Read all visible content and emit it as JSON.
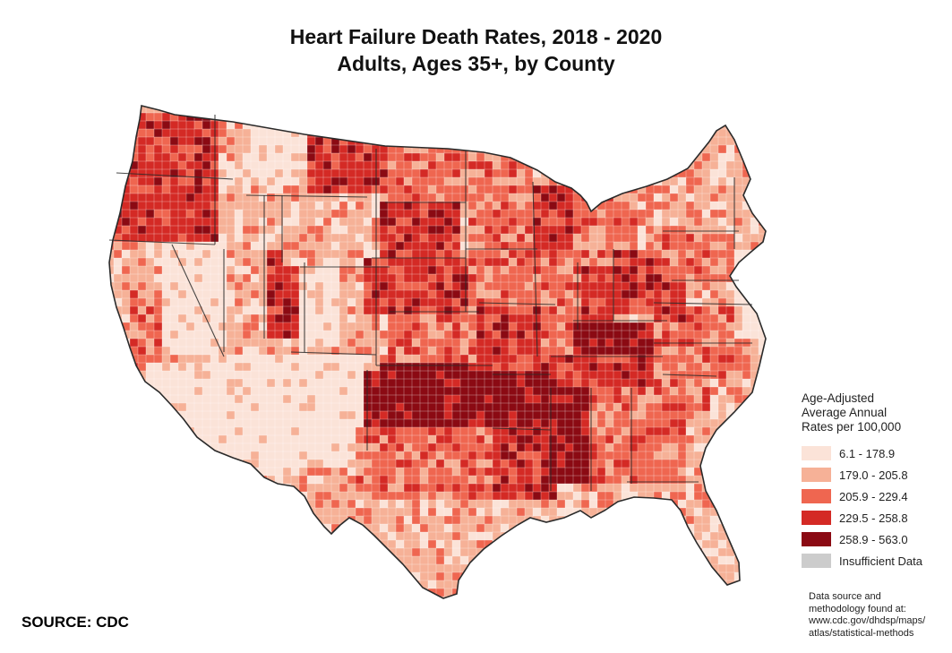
{
  "title": {
    "line1": "Heart Failure Death Rates, 2018 - 2020",
    "line2": "Adults, Ages 35+, by County"
  },
  "legend": {
    "heading": [
      "Age-Adjusted",
      "Average Annual",
      "Rates per 100,000"
    ],
    "items": [
      {
        "label": "6.1 - 178.9",
        "color": "#fbe3d8"
      },
      {
        "label": "179.0 - 205.8",
        "color": "#f6b197"
      },
      {
        "label": "205.9 - 229.4",
        "color": "#ef6650"
      },
      {
        "label": "229.5 - 258.8",
        "color": "#d42a25"
      },
      {
        "label": "258.9 - 563.0",
        "color": "#8b0a13"
      },
      {
        "label": "Insufficient Data",
        "color": "#cccccc"
      }
    ]
  },
  "source": "SOURCE: CDC",
  "methodology": [
    "Data source and",
    "methodology found at:",
    "www.cdc.gov/dhdsp/maps/",
    "atlas/statistical-methods"
  ],
  "map": {
    "style": {
      "border_color": "#2a2a2a",
      "county_line_color": "#ffffff"
    },
    "regions": [
      {
        "name": "washington",
        "cls": 3
      },
      {
        "name": "oregon",
        "cls": 3
      },
      {
        "name": "california-north",
        "cls": 1
      },
      {
        "name": "california-central-valley",
        "cls": 2
      },
      {
        "name": "california-south",
        "cls": 0
      },
      {
        "name": "nevada",
        "cls": 0
      },
      {
        "name": "idaho",
        "cls": 1
      },
      {
        "name": "utah-east",
        "cls": 3
      },
      {
        "name": "utah-west",
        "cls": 1
      },
      {
        "name": "arizona",
        "cls": 0
      },
      {
        "name": "montana-west",
        "cls": 0
      },
      {
        "name": "montana-east",
        "cls": 3
      },
      {
        "name": "wyoming",
        "cls": 1
      },
      {
        "name": "colorado-east",
        "cls": 1
      },
      {
        "name": "colorado-west",
        "cls": 0
      },
      {
        "name": "new-mexico",
        "cls": 0
      },
      {
        "name": "north-dakota",
        "cls": 2
      },
      {
        "name": "south-dakota",
        "cls": 3
      },
      {
        "name": "nebraska",
        "cls": 3
      },
      {
        "name": "kansas",
        "cls": 2
      },
      {
        "name": "oklahoma",
        "cls": 4
      },
      {
        "name": "texas-panhandle",
        "cls": 4
      },
      {
        "name": "texas-central",
        "cls": 2
      },
      {
        "name": "texas-south",
        "cls": 1
      },
      {
        "name": "minnesota",
        "cls": 2
      },
      {
        "name": "iowa",
        "cls": 2
      },
      {
        "name": "missouri",
        "cls": 3
      },
      {
        "name": "arkansas",
        "cls": 4
      },
      {
        "name": "louisiana",
        "cls": 3
      },
      {
        "name": "wisconsin",
        "cls": 3
      },
      {
        "name": "illinois",
        "cls": 2
      },
      {
        "name": "michigan",
        "cls": 2
      },
      {
        "name": "indiana",
        "cls": 3
      },
      {
        "name": "ohio",
        "cls": 3
      },
      {
        "name": "kentucky",
        "cls": 4
      },
      {
        "name": "tennessee",
        "cls": 3
      },
      {
        "name": "mississippi",
        "cls": 4
      },
      {
        "name": "alabama",
        "cls": 2
      },
      {
        "name": "georgia",
        "cls": 2
      },
      {
        "name": "florida",
        "cls": 1
      },
      {
        "name": "south-carolina",
        "cls": 2
      },
      {
        "name": "north-carolina",
        "cls": 2
      },
      {
        "name": "virginia",
        "cls": 2
      },
      {
        "name": "west-virginia",
        "cls": 3
      },
      {
        "name": "pennsylvania",
        "cls": 2
      },
      {
        "name": "new-york",
        "cls": 1
      },
      {
        "name": "new-england",
        "cls": 1
      },
      {
        "name": "maine",
        "cls": 1
      },
      {
        "name": "mid-atlantic-coast",
        "cls": 0
      }
    ]
  }
}
